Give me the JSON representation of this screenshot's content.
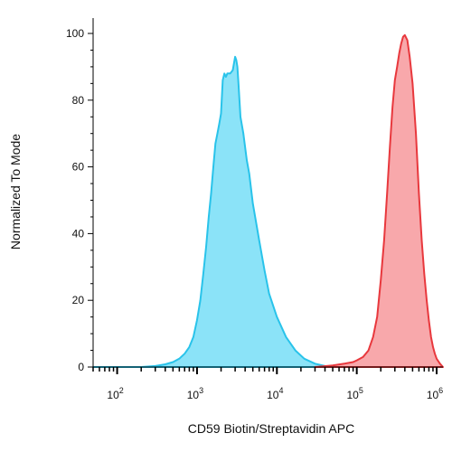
{
  "chart_data": {
    "type": "area",
    "xlabel": "CD59 Biotin/Streptavidin APC",
    "ylabel": "Normalized To Mode",
    "xscale": "log",
    "xlim": [
      50,
      1200000
    ],
    "ylim": [
      0,
      100
    ],
    "x_ticks": [
      {
        "value": 100,
        "base": "10",
        "exp": "2"
      },
      {
        "value": 1000,
        "base": "10",
        "exp": "3"
      },
      {
        "value": 10000,
        "base": "10",
        "exp": "4"
      },
      {
        "value": 100000,
        "base": "10",
        "exp": "5"
      },
      {
        "value": 1000000,
        "base": "10",
        "exp": "6"
      }
    ],
    "y_ticks": [
      "0",
      "20",
      "40",
      "60",
      "80",
      "100"
    ],
    "grid": false,
    "series": [
      {
        "color": "#29c3ea",
        "fill": "#8be3f8",
        "points": [
          [
            50,
            0
          ],
          [
            200,
            0
          ],
          [
            300,
            0.3
          ],
          [
            400,
            0.8
          ],
          [
            500,
            1.5
          ],
          [
            600,
            2.5
          ],
          [
            700,
            4
          ],
          [
            800,
            6
          ],
          [
            900,
            9
          ],
          [
            1000,
            14
          ],
          [
            1100,
            20
          ],
          [
            1200,
            28
          ],
          [
            1300,
            36
          ],
          [
            1400,
            45
          ],
          [
            1500,
            52
          ],
          [
            1600,
            60
          ],
          [
            1700,
            67
          ],
          [
            1800,
            70
          ],
          [
            1900,
            73
          ],
          [
            2000,
            76
          ],
          [
            2100,
            86
          ],
          [
            2200,
            88
          ],
          [
            2300,
            87
          ],
          [
            2400,
            88
          ],
          [
            2600,
            88
          ],
          [
            2800,
            89
          ],
          [
            2900,
            91
          ],
          [
            3000,
            93
          ],
          [
            3100,
            92
          ],
          [
            3200,
            90
          ],
          [
            3300,
            85
          ],
          [
            3400,
            80
          ],
          [
            3500,
            75
          ],
          [
            3800,
            70
          ],
          [
            4200,
            62
          ],
          [
            4500,
            58
          ],
          [
            5000,
            49
          ],
          [
            6000,
            38
          ],
          [
            7000,
            29
          ],
          [
            8000,
            22
          ],
          [
            10000,
            15
          ],
          [
            13000,
            9
          ],
          [
            17000,
            5
          ],
          [
            22000,
            2.5
          ],
          [
            30000,
            1
          ],
          [
            40000,
            0.3
          ],
          [
            60000,
            0
          ]
        ]
      },
      {
        "color": "#e8383d",
        "fill": "#f8a8ab",
        "points": [
          [
            30000,
            0
          ],
          [
            50000,
            0.5
          ],
          [
            70000,
            1
          ],
          [
            90000,
            1.5
          ],
          [
            100000,
            2
          ],
          [
            120000,
            3
          ],
          [
            140000,
            5
          ],
          [
            160000,
            9
          ],
          [
            180000,
            15
          ],
          [
            200000,
            26
          ],
          [
            220000,
            38
          ],
          [
            240000,
            52
          ],
          [
            260000,
            66
          ],
          [
            280000,
            78
          ],
          [
            300000,
            86
          ],
          [
            320000,
            90
          ],
          [
            340000,
            94
          ],
          [
            360000,
            97
          ],
          [
            380000,
            99
          ],
          [
            400000,
            99.5
          ],
          [
            430000,
            98
          ],
          [
            460000,
            93
          ],
          [
            500000,
            85
          ],
          [
            550000,
            70
          ],
          [
            600000,
            52
          ],
          [
            650000,
            38
          ],
          [
            700000,
            28
          ],
          [
            750000,
            20
          ],
          [
            800000,
            14
          ],
          [
            850000,
            9
          ],
          [
            900000,
            6
          ],
          [
            950000,
            4
          ],
          [
            1000000,
            2.5
          ],
          [
            1100000,
            1
          ],
          [
            1200000,
            0
          ]
        ]
      }
    ]
  }
}
